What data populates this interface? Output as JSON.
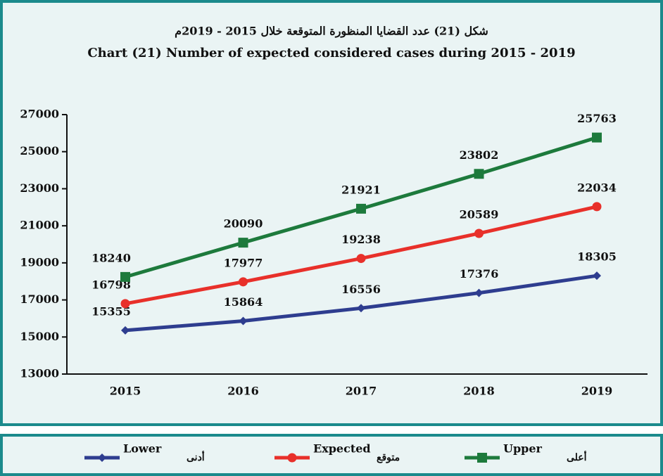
{
  "chart_data": {
    "type": "line",
    "title_ar": "شكل (21) عدد القضايا المنظورة المتوقعة خلال 2015 - 2019م",
    "title": "Chart (21) Number of expected considered cases during  2015 - 2019",
    "categories": [
      "2015",
      "2016",
      "2017",
      "2018",
      "2019"
    ],
    "series": [
      {
        "name": "Lower",
        "name_ar": "أدنى",
        "color": "#2e3d8f",
        "marker": "diamond",
        "values": [
          15355,
          15864,
          16556,
          17376,
          18305
        ]
      },
      {
        "name": "Expected",
        "name_ar": "متوقع",
        "color": "#e8302a",
        "marker": "circle",
        "values": [
          16798,
          17977,
          19238,
          20589,
          22034
        ]
      },
      {
        "name": "Upper",
        "name_ar": "أعلى",
        "color": "#1d7a3c",
        "marker": "square",
        "values": [
          18240,
          20090,
          21921,
          23802,
          25763
        ]
      }
    ],
    "ylim": [
      13000,
      27000
    ],
    "yticks": [
      13000,
      15000,
      17000,
      19000,
      21000,
      23000,
      25000,
      27000
    ]
  }
}
